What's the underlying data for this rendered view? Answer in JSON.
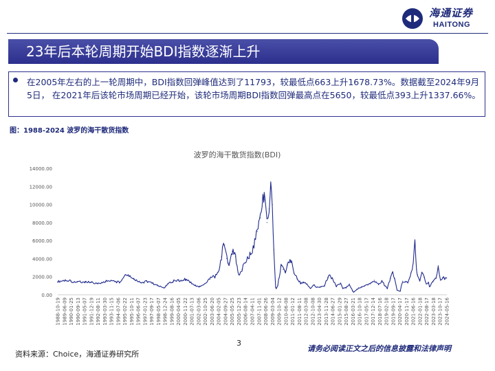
{
  "header": {
    "logo_cn": "海通证券",
    "logo_en": "HAITONG"
  },
  "slide": {
    "title": "23年后本轮周期开始BDI指数逐渐上升",
    "summary": "在2005年左右的上一轮周期中，BDI指数回弹峰值达到了11793，较最低点663上升1678.73%。数据截至2024年9月5日， 在2021年后该轮市场周期已经开始，该轮市场周期BDI指数回弹最高点在5650，较最低点393上升1337.66%。",
    "figure_caption": "图：1988-2024 波罗的海干散货指数",
    "source": "资料来源：Choice，海通证券研究所",
    "page_number": "3",
    "disclaimer": "请务必阅读正文之后的信息披露和法律声明"
  },
  "colors": {
    "brand": "#1e2a7a",
    "banner": "#2c2f8c",
    "series": "#1f2a8c"
  },
  "chart_data": {
    "type": "line",
    "title": "波罗的海干散货指数(BDI)",
    "xlabel": "",
    "ylabel": "",
    "ylim": [
      0,
      14000
    ],
    "yticks": [
      "0.00",
      "2000.00",
      "4000.00",
      "6000.00",
      "8000.00",
      "10000.00",
      "12000.00",
      "14000.00"
    ],
    "xticks": [
      "1988-10-19",
      "1989-06-09",
      "1990-01-25",
      "1990-09-13",
      "1991-05-07",
      "1991-12-19",
      "1992-08-11",
      "1993-03-30",
      "1993-11-15",
      "1994-07-06",
      "1995-02-22",
      "1995-10-11",
      "1996-06-07",
      "1997-01-23",
      "1997-09-17",
      "1998-05-07",
      "1998-12-24",
      "1999-08-16",
      "2000-04-05",
      "2000-11-22",
      "2001-07-13",
      "2002-03-06",
      "2002-10-25",
      "2003-06-20",
      "2004-02-05",
      "2004-09-27",
      "2005-05-25",
      "2005-12-23",
      "2006-08-14",
      "2007-04-11",
      "2007-11-01",
      "2008-06-26",
      "2009-03-04",
      "2009-10-12",
      "2010-06-08",
      "2011-01-12",
      "2011-08-11",
      "2012-03-08",
      "2012-10-08",
      "2013-04-30",
      "2013-11-28",
      "2014-06-27",
      "2015-01-29",
      "2015-08-27",
      "2016-03-21",
      "2016-10-18",
      "2017-05-17",
      "2017-12-14",
      "2018-07-16",
      "2019-02-18",
      "2019-09-17",
      "2020-04-17",
      "2020-11-17",
      "2021-06-16",
      "2022-01-18",
      "2022-08-17",
      "2023-03-18",
      "2023-10-17",
      "2024-05-16"
    ],
    "grid": false,
    "legend": "none",
    "series": [
      {
        "x": [
          1988.8,
          1989.5,
          1990.0,
          1990.6,
          1991.3,
          1991.9,
          1992.5,
          1993.2,
          1993.8,
          1994.5,
          1995.0,
          1995.3,
          1995.8,
          1996.5,
          1997.0,
          1997.5,
          1998.0,
          1998.6,
          1999.0,
          1999.5,
          2000.0,
          2000.6,
          2001.0,
          2001.5,
          2001.9,
          2002.4,
          2002.9,
          2003.3,
          2003.6,
          2003.9,
          2004.0,
          2004.2,
          2004.4,
          2004.6,
          2004.9,
          2005.2,
          2005.5,
          2005.8,
          2006.0,
          2006.3,
          2006.6,
          2006.9,
          2007.2,
          2007.5,
          2007.8,
          2007.9,
          2008.1,
          2008.3,
          2008.45,
          2008.6,
          2008.75,
          2008.9,
          2008.95,
          2009.1,
          2009.4,
          2009.6,
          2009.8,
          2010.0,
          2010.3,
          2010.6,
          2010.9,
          2011.2,
          2011.5,
          2011.8,
          2012.1,
          2012.4,
          2012.7,
          2013.0,
          2013.4,
          2013.7,
          2013.9,
          2014.2,
          2014.5,
          2014.9,
          2015.1,
          2015.4,
          2015.7,
          2016.0,
          2016.1,
          2016.4,
          2016.8,
          2017.1,
          2017.4,
          2017.7,
          2018.0,
          2018.4,
          2018.7,
          2019.0,
          2019.2,
          2019.5,
          2019.7,
          2019.9,
          2020.1,
          2020.4,
          2020.6,
          2020.9,
          2021.1,
          2021.4,
          2021.6,
          2021.75,
          2021.9,
          2022.0,
          2022.2,
          2022.4,
          2022.6,
          2022.8,
          2023.0,
          2023.1,
          2023.4,
          2023.7,
          2023.9,
          2024.1,
          2024.3,
          2024.5,
          2024.68
        ],
        "values": [
          1450,
          1600,
          1500,
          1400,
          1450,
          1350,
          1200,
          1500,
          1550,
          1350,
          2200,
          2150,
          1700,
          1300,
          1500,
          1300,
          1000,
          750,
          1200,
          1500,
          1600,
          1700,
          1400,
          1000,
          900,
          1250,
          1950,
          2000,
          2500,
          4200,
          5300,
          5500,
          4000,
          3500,
          4800,
          4200,
          2200,
          2800,
          3500,
          4200,
          4500,
          5300,
          7000,
          8500,
          10800,
          10500,
          8000,
          9500,
          11793,
          10000,
          5000,
          800,
          663,
          1000,
          3200,
          2800,
          2600,
          3300,
          3800,
          2400,
          1800,
          1300,
          1400,
          1200,
          700,
          1100,
          800,
          900,
          1000,
          1900,
          2200,
          1600,
          900,
          1300,
          700,
          800,
          1200,
          400,
          290,
          600,
          900,
          1000,
          1100,
          1300,
          1600,
          1100,
          1500,
          1000,
          700,
          1800,
          2500,
          1800,
          500,
          393,
          1500,
          1500,
          1300,
          2500,
          3500,
          5650,
          2800,
          2200,
          1600,
          2500,
          1900,
          1200,
          1300,
          900,
          1500,
          1800,
          3200,
          1600,
          1900,
          1800,
          1850
        ]
      }
    ]
  }
}
